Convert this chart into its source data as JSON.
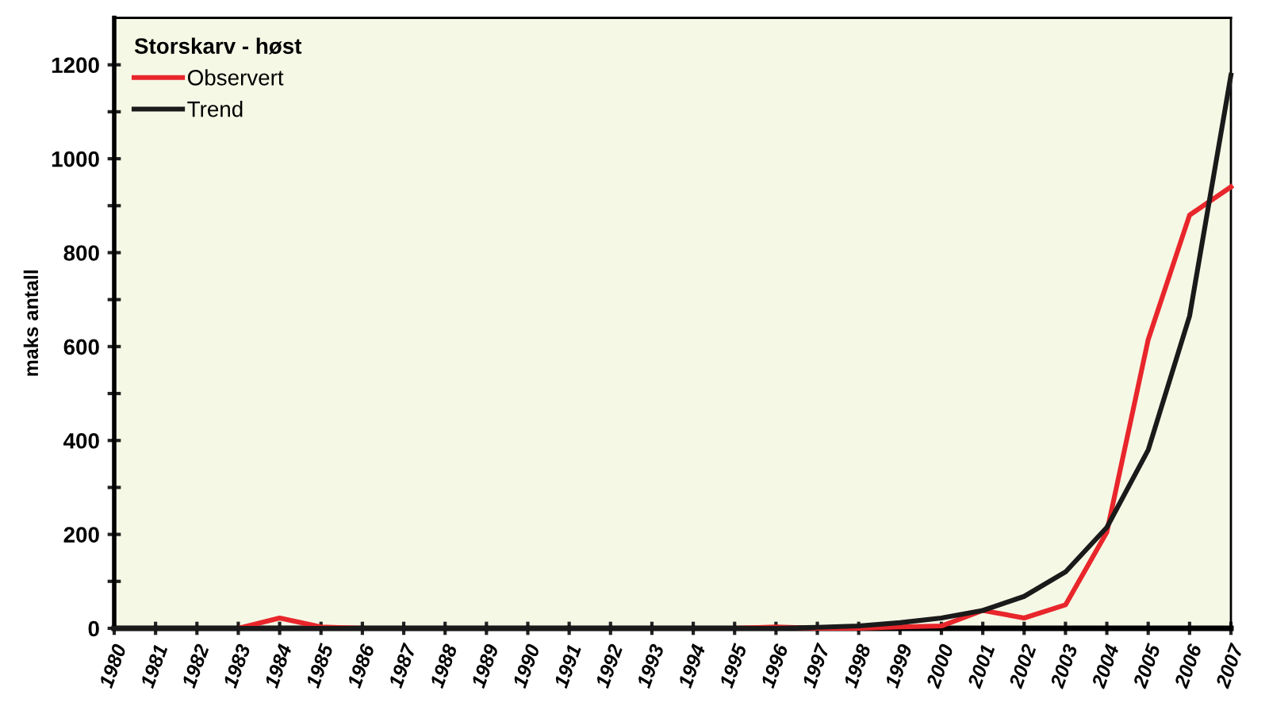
{
  "chart_data": {
    "type": "line",
    "legend_title": "Storskarv - høst",
    "ylabel": "maks antall",
    "x": [
      1980,
      1981,
      1982,
      1983,
      1984,
      1985,
      1986,
      1987,
      1988,
      1989,
      1990,
      1991,
      1992,
      1993,
      1994,
      1995,
      1996,
      1997,
      1998,
      1999,
      2000,
      2001,
      2002,
      2003,
      2004,
      2005,
      2006,
      2007
    ],
    "series": [
      {
        "name": "Observert",
        "color": "#e8262b",
        "values": [
          null,
          null,
          0,
          0,
          22,
          3,
          0,
          0,
          0,
          0,
          0,
          0,
          0,
          0,
          0,
          0,
          3,
          0,
          0,
          3,
          5,
          38,
          22,
          50,
          205,
          615,
          880,
          940
        ]
      },
      {
        "name": "Trend",
        "color": "#1a1a1a",
        "values": [
          0,
          0,
          0,
          0,
          0,
          0,
          0,
          0,
          0,
          0,
          0,
          0,
          0,
          0,
          0,
          0,
          0,
          2,
          5,
          12,
          22,
          38,
          68,
          120,
          215,
          380,
          665,
          1178
        ]
      }
    ],
    "xlim": [
      1980,
      2007
    ],
    "xticks": [
      1980,
      1981,
      1982,
      1983,
      1984,
      1985,
      1986,
      1987,
      1988,
      1989,
      1990,
      1991,
      1992,
      1993,
      1994,
      1995,
      1996,
      1997,
      1998,
      1999,
      2000,
      2001,
      2002,
      2003,
      2004,
      2005,
      2006,
      2007
    ],
    "ylim": [
      0,
      1300
    ],
    "yticks": [
      0,
      {
        "value": 100,
        "label": null
      },
      200,
      {
        "value": 300,
        "label": null
      },
      400,
      {
        "value": 500,
        "label": null
      },
      600,
      {
        "value": 700,
        "label": null
      },
      800,
      {
        "value": 900,
        "label": null
      },
      1000,
      {
        "value": 1100,
        "label": null
      },
      1200
    ],
    "legend": "top left",
    "grid": false,
    "marker": "none",
    "line_style": "solid"
  }
}
